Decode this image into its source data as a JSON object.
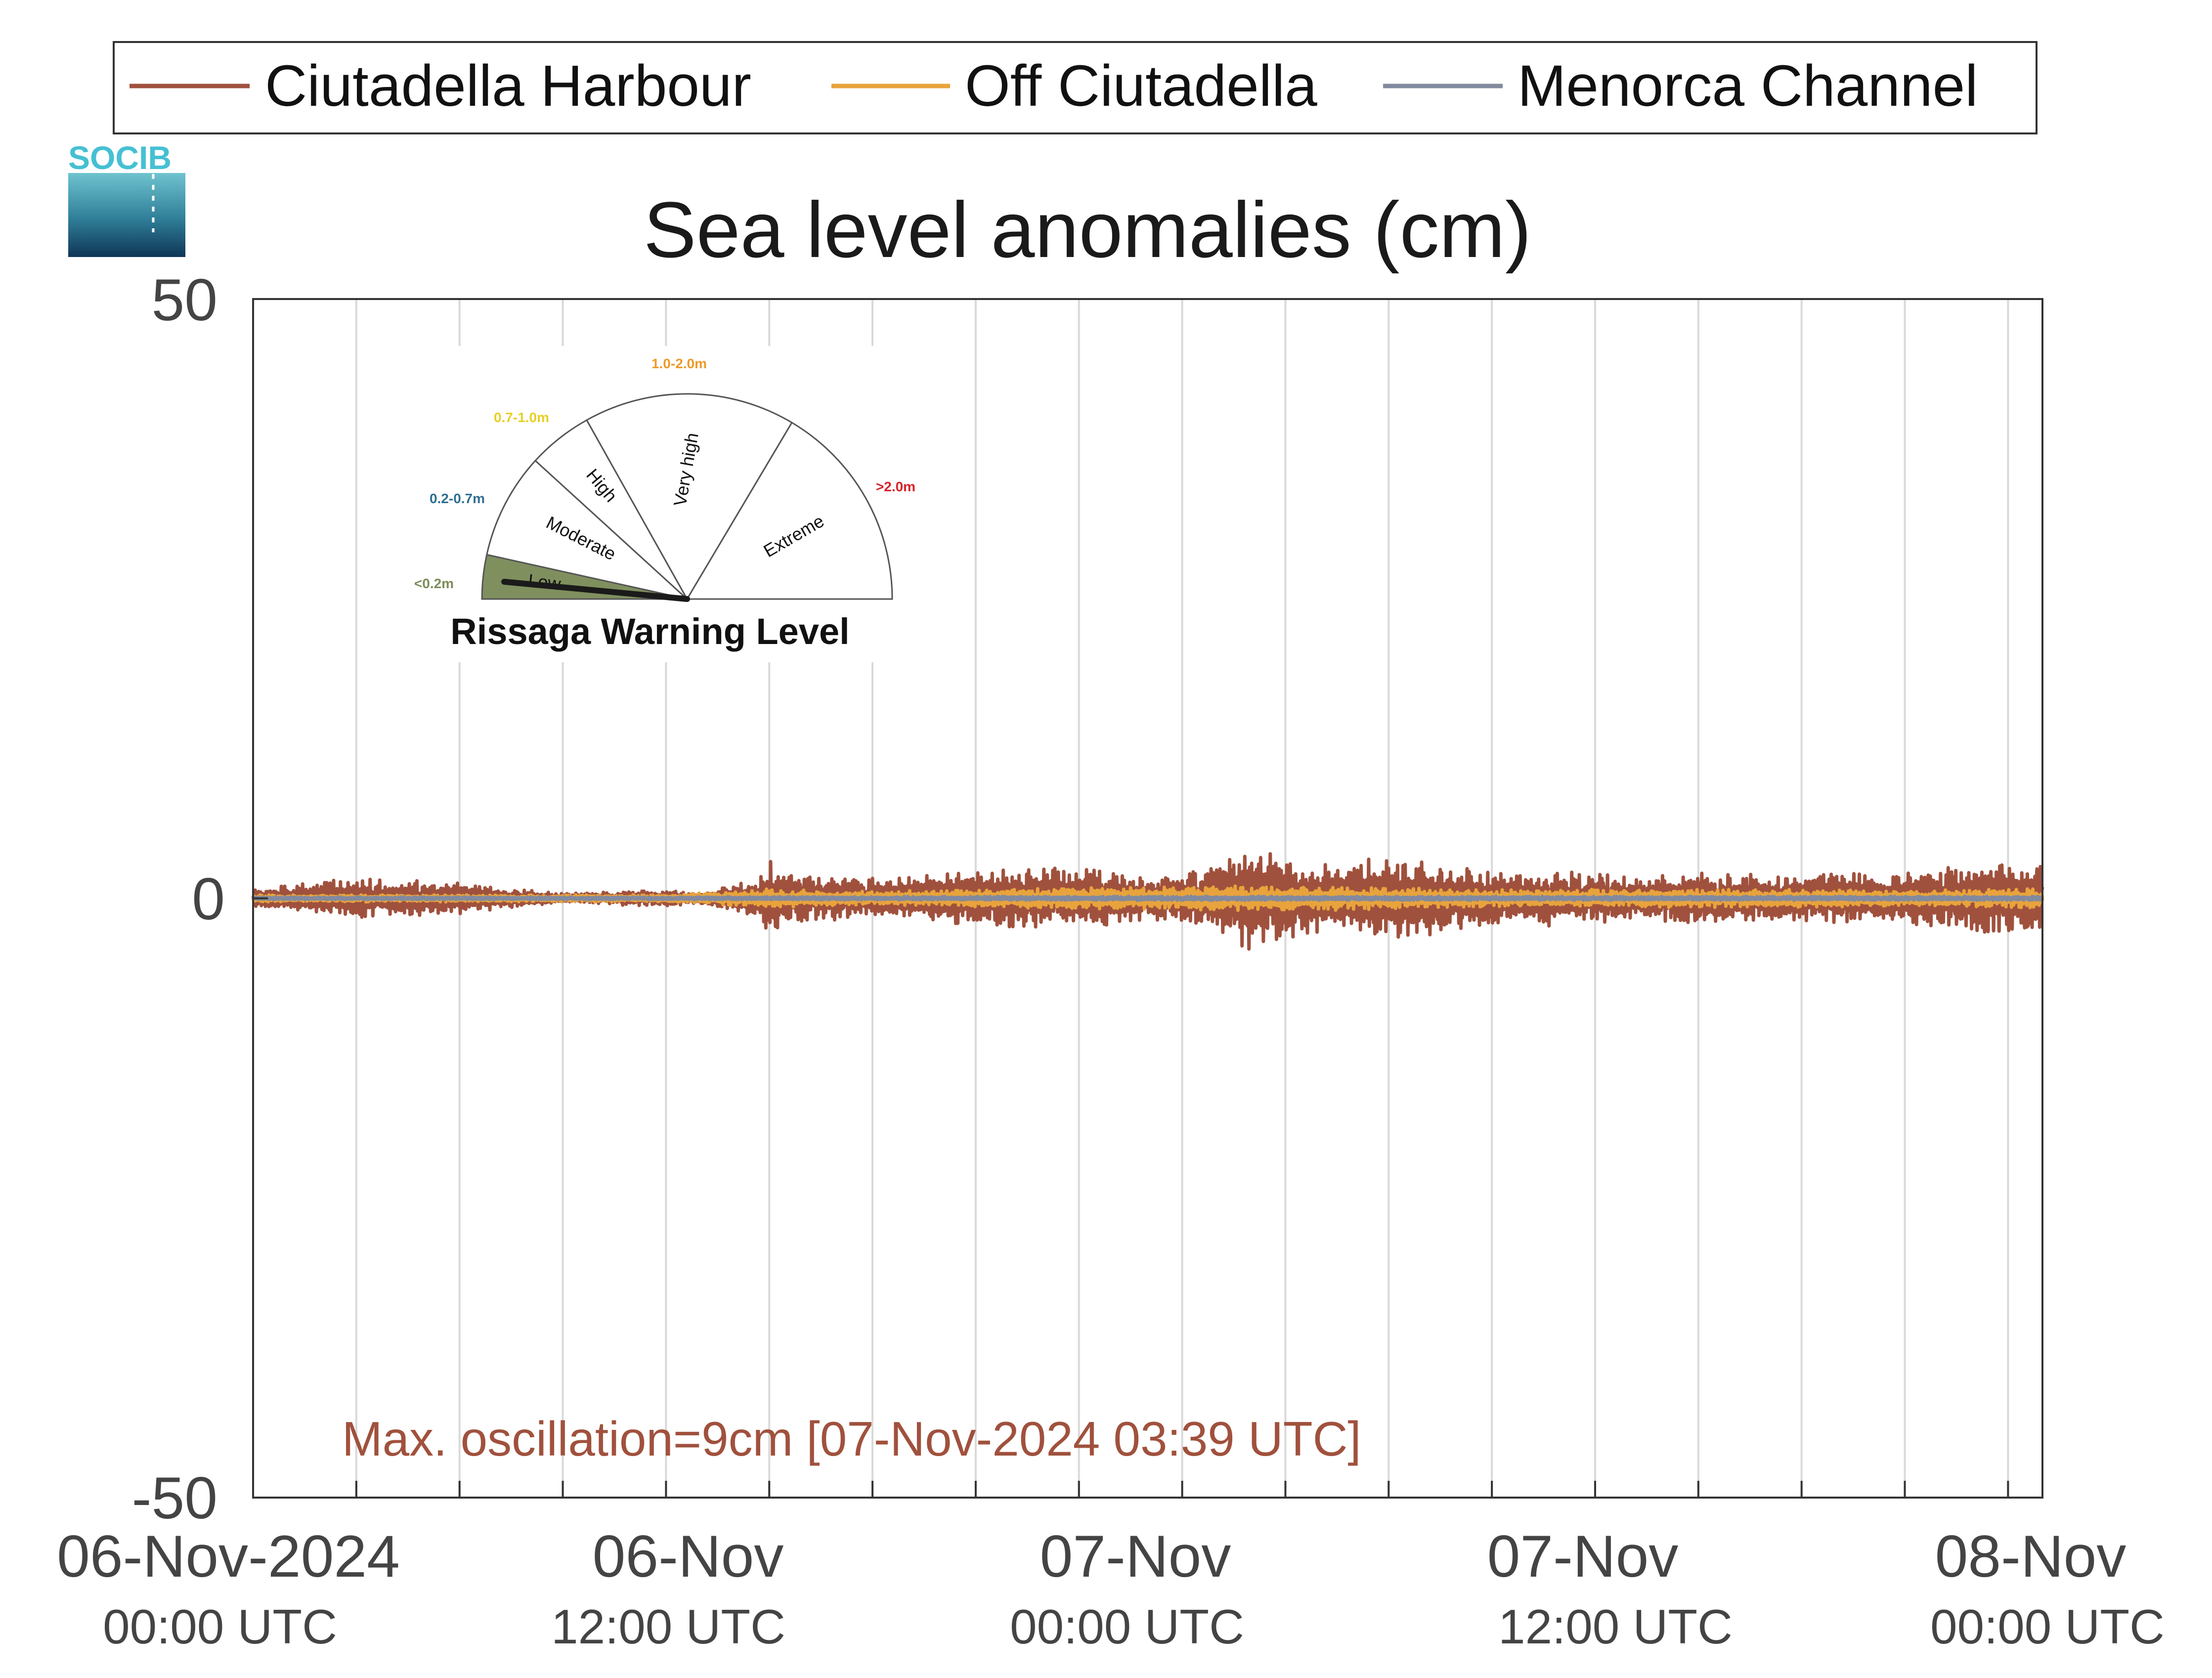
{
  "chart_data": {
    "type": "line",
    "title": "Sea level anomalies (cm)",
    "ylim": [
      -50,
      50
    ],
    "yticks": [
      {
        "value": 50,
        "label": "50"
      },
      {
        "value": 0,
        "label": "0"
      },
      {
        "value": -50,
        "label": "-50"
      }
    ],
    "x_range_hours": [
      0,
      52
    ],
    "x_gridlines_every_hours": 3,
    "x_ticks": [
      {
        "hours": 0,
        "date": "06-Nov-2024",
        "time": "00:00 UTC"
      },
      {
        "hours": 12,
        "date": "06-Nov",
        "time": "12:00 UTC"
      },
      {
        "hours": 24,
        "date": "07-Nov",
        "time": "00:00 UTC"
      },
      {
        "hours": 36,
        "date": "07-Nov",
        "time": "12:00 UTC"
      },
      {
        "hours": 48,
        "date": "08-Nov",
        "time": "00:00 UTC"
      }
    ],
    "grid": "vertical",
    "legend_position": "top",
    "series": [
      {
        "name": "Ciutadella Harbour",
        "color": "#a0513d",
        "envelope": {
          "hours": [
            0,
            3,
            6,
            8,
            9,
            12,
            13,
            14.5,
            15,
            16,
            18,
            21,
            24,
            26,
            27,
            28.5,
            29,
            30,
            31,
            33,
            36,
            38,
            40,
            42,
            45,
            48,
            51,
            52
          ],
          "max_abs_cm": [
            0.8,
            1.8,
            1.3,
            0.7,
            0.4,
            0.7,
            0.5,
            1.5,
            3.2,
            2.0,
            1.8,
            2.5,
            2.6,
            1.8,
            2.1,
            3.5,
            4.8,
            3.7,
            3.0,
            3.6,
            2.2,
            2.4,
            1.8,
            2.2,
            2.0,
            2.3,
            3.2,
            3.4
          ]
        }
      },
      {
        "name": "Off Ciutadella",
        "color": "#e8a33c",
        "envelope": {
          "hours": [
            0,
            6,
            12,
            15,
            18,
            24,
            28,
            30,
            36,
            42,
            48,
            52
          ],
          "max_abs_cm": [
            0.3,
            0.3,
            0.3,
            0.8,
            0.6,
            0.9,
            1.0,
            1.1,
            0.7,
            0.8,
            0.7,
            0.8
          ]
        }
      },
      {
        "name": "Menorca Channel",
        "color": "#828a9e",
        "envelope": {
          "hours": [
            0,
            12,
            24,
            36,
            48,
            52
          ],
          "max_abs_cm": [
            0.15,
            0.15,
            0.2,
            0.2,
            0.2,
            0.2
          ]
        }
      }
    ],
    "annotation": {
      "text": "Max. oscillation=9cm [07-Nov-2024 03:39 UTC]",
      "color": "#a0513d"
    }
  },
  "gauge": {
    "title": "Rissaga Warning Level",
    "current_level": "Low",
    "levels": [
      {
        "name": "Low",
        "range": "<0.2m",
        "range_color": "#7d8c5a",
        "fill": "#7f8f5e"
      },
      {
        "name": "Moderate",
        "range": "0.2-0.7m",
        "range_color": "#2f6f93",
        "fill": "#ffffff"
      },
      {
        "name": "High",
        "range": "0.7-1.0m",
        "range_color": "#e6d024",
        "fill": "#ffffff"
      },
      {
        "name": "Very high",
        "range": "1.0-2.0m",
        "range_color": "#ec9a2a",
        "fill": "#ffffff"
      },
      {
        "name": "Extreme",
        "range": ">2.0m",
        "range_color": "#d8232a",
        "fill": "#ffffff"
      }
    ]
  },
  "logo": {
    "text": "SOCIB"
  }
}
